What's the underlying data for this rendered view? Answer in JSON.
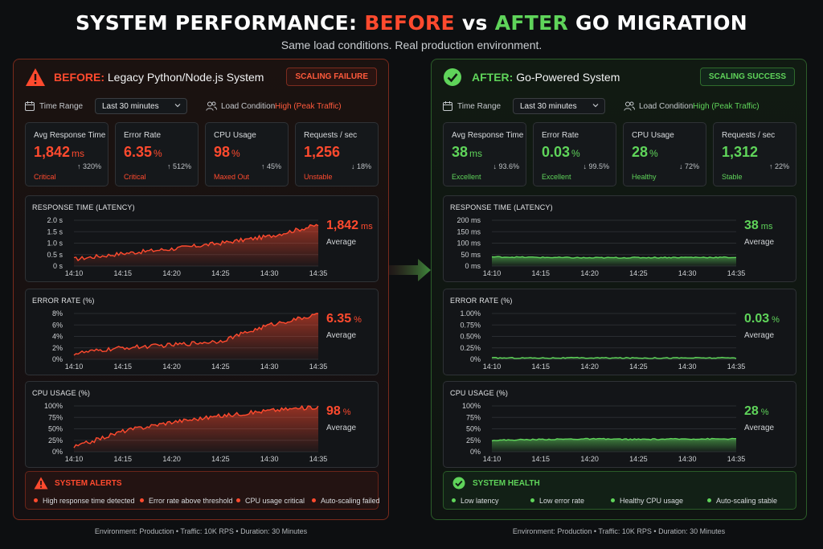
{
  "header": {
    "title_1": "SYSTEM PERFORMANCE: ",
    "title_before": "BEFORE",
    "title_vs": " vs ",
    "title_after": "AFTER",
    "title_2": " GO MIGRATION",
    "subtitle": "Same load conditions. Real production environment."
  },
  "colors": {
    "red": "#ff4a2e",
    "green": "#5fd45a",
    "background": "#0d0f11"
  },
  "before": {
    "icon": "warning-triangle-icon",
    "lead": "BEFORE:",
    "title": " Legacy Python/Node.js System",
    "badge": "SCALING FAILURE",
    "time_range_label": "Time Range",
    "time_range_value": "Last 30 minutes",
    "load_label": "Load Condition",
    "load_value": "High (Peak Traffic)",
    "kpis": [
      {
        "label": "Avg Response Time",
        "value": "1,842",
        "unit": "ms",
        "status": "Critical",
        "change": "↑ 320%"
      },
      {
        "label": "Error Rate",
        "value": "6.35",
        "unit": "%",
        "status": "Critical",
        "change": "↑ 512%"
      },
      {
        "label": "CPU Usage",
        "value": "98",
        "unit": "%",
        "status": "Maxed Out",
        "change": "↑ 45%"
      },
      {
        "label": "Requests / sec",
        "value": "1,256",
        "unit": "",
        "status": "Unstable",
        "change": "↓ 18%"
      }
    ],
    "charts": [
      {
        "title": "RESPONSE TIME (LATENCY)",
        "value": "1,842",
        "unit": "ms",
        "avg_label": "Average"
      },
      {
        "title": "ERROR RATE (%)",
        "value": "6.35",
        "unit": "%",
        "avg_label": "Average"
      },
      {
        "title": "CPU USAGE (%)",
        "value": "98",
        "unit": "%",
        "avg_label": "Average"
      }
    ],
    "alerts_title": "SYSTEM ALERTS",
    "alerts": [
      "High response time detected",
      "Error rate above threshold",
      "CPU usage critical",
      "Auto-scaling failed"
    ],
    "footer": "Environment: Production   •   Traffic: 10K RPS   •   Duration: 30 Minutes"
  },
  "after": {
    "icon": "check-circle-icon",
    "lead": "AFTER:",
    "title": " Go-Powered System",
    "badge": "SCALING SUCCESS",
    "time_range_label": "Time Range",
    "time_range_value": "Last 30 minutes",
    "load_label": "Load Condition",
    "load_value": "High (Peak Traffic)",
    "kpis": [
      {
        "label": "Avg Response Time",
        "value": "38",
        "unit": "ms",
        "status": "Excellent",
        "change": "↓ 93.6%"
      },
      {
        "label": "Error Rate",
        "value": "0.03",
        "unit": "%",
        "status": "Excellent",
        "change": "↓ 99.5%"
      },
      {
        "label": "CPU Usage",
        "value": "28",
        "unit": "%",
        "status": "Healthy",
        "change": "↓ 72%"
      },
      {
        "label": "Requests / sec",
        "value": "1,312",
        "unit": "",
        "status": "Stable",
        "change": "↑ 22%"
      }
    ],
    "charts": [
      {
        "title": "RESPONSE TIME (LATENCY)",
        "value": "38",
        "unit": "ms",
        "avg_label": "Average"
      },
      {
        "title": "ERROR RATE (%)",
        "value": "0.03",
        "unit": "%",
        "avg_label": "Average"
      },
      {
        "title": "CPU USAGE (%)",
        "value": "28",
        "unit": "%",
        "avg_label": "Average"
      }
    ],
    "alerts_title": "SYSTEM HEALTH",
    "alerts": [
      "Low latency",
      "Low error rate",
      "Healthy CPU usage",
      "Auto-scaling stable"
    ],
    "footer": "Environment: Production   •   Traffic: 10K RPS   •   Duration: 30 Minutes"
  },
  "chart_data": [
    {
      "type": "area",
      "panel": "before",
      "title": "RESPONSE TIME (LATENCY)",
      "x": [
        "14:10",
        "14:15",
        "14:20",
        "14:25",
        "14:30",
        "14:35"
      ],
      "y_ticks": [
        "0 s",
        "0.5 s",
        "1.0 s",
        "1.5 s",
        "2.0 s"
      ],
      "ylim": [
        0,
        2.0
      ],
      "values": [
        0.3,
        0.55,
        0.75,
        1.0,
        1.3,
        1.8
      ]
    },
    {
      "type": "area",
      "panel": "before",
      "title": "ERROR RATE (%)",
      "x": [
        "14:10",
        "14:15",
        "14:20",
        "14:25",
        "14:30",
        "14:35"
      ],
      "y_ticks": [
        "0%",
        "2%",
        "4%",
        "6%",
        "8%"
      ],
      "ylim": [
        0,
        8
      ],
      "values": [
        1.0,
        2.0,
        2.5,
        3.2,
        6.0,
        7.8
      ]
    },
    {
      "type": "area",
      "panel": "before",
      "title": "CPU USAGE (%)",
      "x": [
        "14:10",
        "14:15",
        "14:20",
        "14:25",
        "14:30",
        "14:35"
      ],
      "y_ticks": [
        "0%",
        "25%",
        "50%",
        "75%",
        "100%"
      ],
      "ylim": [
        0,
        100
      ],
      "values": [
        10,
        45,
        65,
        78,
        90,
        98
      ]
    },
    {
      "type": "area",
      "panel": "after",
      "title": "RESPONSE TIME (LATENCY)",
      "x": [
        "14:10",
        "14:15",
        "14:20",
        "14:25",
        "14:30",
        "14:35"
      ],
      "y_ticks": [
        "0 ms",
        "50 ms",
        "100 ms",
        "150 ms",
        "200 ms"
      ],
      "ylim": [
        0,
        200
      ],
      "values": [
        40,
        38,
        36,
        37,
        38,
        38
      ]
    },
    {
      "type": "area",
      "panel": "after",
      "title": "ERROR RATE (%)",
      "x": [
        "14:10",
        "14:15",
        "14:20",
        "14:25",
        "14:30",
        "14:35"
      ],
      "y_ticks": [
        "0%",
        "0.25%",
        "0.50%",
        "0.75%",
        "1.00%"
      ],
      "ylim": [
        0,
        1.0
      ],
      "values": [
        0.03,
        0.03,
        0.03,
        0.03,
        0.03,
        0.03
      ]
    },
    {
      "type": "area",
      "panel": "after",
      "title": "CPU USAGE (%)",
      "x": [
        "14:10",
        "14:15",
        "14:20",
        "14:25",
        "14:30",
        "14:35"
      ],
      "y_ticks": [
        "0%",
        "25%",
        "50%",
        "75%",
        "100%"
      ],
      "ylim": [
        0,
        100
      ],
      "values": [
        25,
        27,
        28,
        27,
        28,
        28
      ]
    }
  ]
}
